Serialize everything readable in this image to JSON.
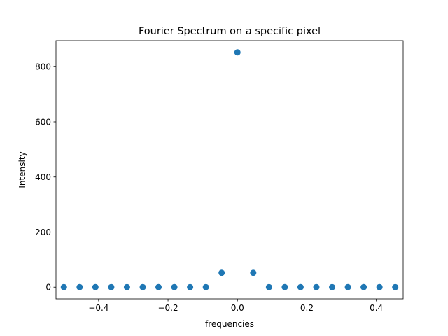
{
  "chart_data": {
    "type": "scatter",
    "title": "Fourier Spectrum on a specific pixel",
    "xlabel": "frequencies",
    "ylabel": "Intensity",
    "xlim": [
      -0.5227,
      0.4773
    ],
    "ylim": [
      -42.6,
      894.6
    ],
    "xticks": [
      -0.4,
      -0.2,
      0.0,
      0.2,
      0.4
    ],
    "xtick_labels": [
      "−0.4",
      "−0.2",
      "0.0",
      "0.2",
      "0.4"
    ],
    "yticks": [
      0,
      200,
      400,
      600,
      800
    ],
    "ytick_labels": [
      "0",
      "200",
      "400",
      "600",
      "800"
    ],
    "grid": false,
    "marker_color": "#1f77b4",
    "x": [
      -0.5,
      -0.4545,
      -0.4091,
      -0.3636,
      -0.3182,
      -0.2727,
      -0.2273,
      -0.1818,
      -0.1364,
      -0.0909,
      -0.0455,
      0.0,
      0.0455,
      0.0909,
      0.1364,
      0.1818,
      0.2273,
      0.2727,
      0.3182,
      0.3636,
      0.4091,
      0.4545
    ],
    "y": [
      0,
      0,
      0,
      0,
      0,
      0,
      0,
      0,
      0,
      0,
      52,
      852,
      52,
      0,
      0,
      0,
      0,
      0,
      0,
      0,
      0,
      0
    ]
  }
}
